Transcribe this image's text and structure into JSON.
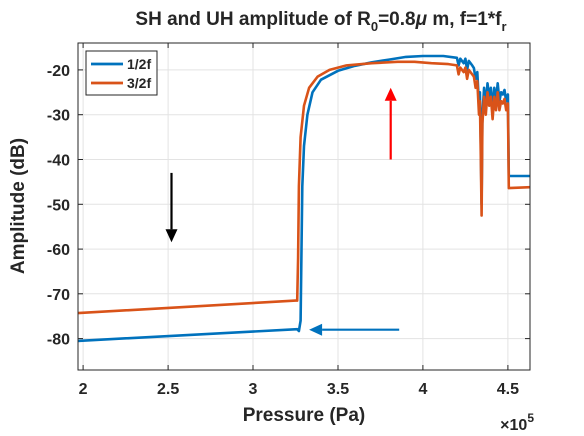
{
  "chart_data": {
    "type": "line",
    "title": {
      "prefix": "SH and UH amplitude of R",
      "sub1": "0",
      "middle": "=0.8",
      "mu": "μ",
      "suffix": " m, f=1*f",
      "sub2": "r"
    },
    "xlabel": "Pressure (Pa)",
    "ylabel": "Amplitude (dB)",
    "x_exponent": {
      "base": "×10",
      "power": "5"
    },
    "xlim": [
      1.97,
      4.63
    ],
    "ylim": [
      -87,
      -14
    ],
    "xticks": [
      2,
      2.5,
      3,
      3.5,
      4,
      4.5
    ],
    "xtick_labels": [
      "2",
      "2.5",
      "3",
      "3.5",
      "4",
      "4.5"
    ],
    "yticks": [
      -80,
      -70,
      -60,
      -50,
      -40,
      -30,
      -20
    ],
    "ytick_labels": [
      "-80",
      "-70",
      "-60",
      "-50",
      "-40",
      "-30",
      "-20"
    ],
    "grid": true,
    "legend": "top-left",
    "series": [
      {
        "name": "1/2f",
        "color": "#0072BD",
        "points": [
          [
            1.97,
            -80.5
          ],
          [
            3.26,
            -77.9
          ],
          [
            3.27,
            -78.3
          ],
          [
            3.28,
            -76
          ],
          [
            3.285,
            -60
          ],
          [
            3.29,
            -46
          ],
          [
            3.3,
            -37
          ],
          [
            3.32,
            -30
          ],
          [
            3.35,
            -25
          ],
          [
            3.4,
            -22.2
          ],
          [
            3.5,
            -20.2
          ],
          [
            3.6,
            -19.1
          ],
          [
            3.7,
            -18.3
          ],
          [
            3.8,
            -17.7
          ],
          [
            3.9,
            -17.1
          ],
          [
            4.0,
            -16.9
          ],
          [
            4.12,
            -16.9
          ],
          [
            4.2,
            -17.3
          ],
          [
            4.21,
            -19
          ],
          [
            4.22,
            -17.5
          ],
          [
            4.24,
            -18.5
          ],
          [
            4.25,
            -17.5
          ],
          [
            4.26,
            -20
          ],
          [
            4.27,
            -18
          ],
          [
            4.29,
            -19
          ],
          [
            4.3,
            -19.6
          ],
          [
            4.31,
            -22
          ],
          [
            4.32,
            -20.5
          ],
          [
            4.33,
            -28
          ],
          [
            4.335,
            -25
          ],
          [
            4.34,
            -35
          ],
          [
            4.345,
            -50
          ],
          [
            4.35,
            -30
          ],
          [
            4.36,
            -24
          ],
          [
            4.37,
            -28
          ],
          [
            4.38,
            -23
          ],
          [
            4.39,
            -26
          ],
          [
            4.4,
            -24
          ],
          [
            4.41,
            -29
          ],
          [
            4.42,
            -24
          ],
          [
            4.43,
            -27
          ],
          [
            4.44,
            -23
          ],
          [
            4.45,
            -27
          ],
          [
            4.46,
            -25
          ],
          [
            4.47,
            -25.5
          ],
          [
            4.48,
            -24.5
          ],
          [
            4.49,
            -27
          ],
          [
            4.5,
            -25.5
          ],
          [
            4.505,
            -43.7
          ],
          [
            4.63,
            -43.7
          ]
        ]
      },
      {
        "name": "3/2f",
        "color": "#D95319",
        "points": [
          [
            1.97,
            -74.3
          ],
          [
            3.25,
            -71.5
          ],
          [
            3.26,
            -71.5
          ],
          [
            3.265,
            -62
          ],
          [
            3.27,
            -46
          ],
          [
            3.28,
            -35
          ],
          [
            3.3,
            -28
          ],
          [
            3.33,
            -24
          ],
          [
            3.38,
            -21.5
          ],
          [
            3.45,
            -20
          ],
          [
            3.55,
            -19
          ],
          [
            3.7,
            -18.5
          ],
          [
            3.85,
            -18.2
          ],
          [
            3.95,
            -18.2
          ],
          [
            4.05,
            -18.5
          ],
          [
            4.15,
            -18.7
          ],
          [
            4.2,
            -19
          ],
          [
            4.21,
            -21
          ],
          [
            4.22,
            -19.5
          ],
          [
            4.24,
            -20.5
          ],
          [
            4.25,
            -19.5
          ],
          [
            4.26,
            -22
          ],
          [
            4.27,
            -20
          ],
          [
            4.29,
            -21
          ],
          [
            4.3,
            -21.5
          ],
          [
            4.31,
            -24
          ],
          [
            4.32,
            -22.5
          ],
          [
            4.33,
            -30
          ],
          [
            4.335,
            -27
          ],
          [
            4.34,
            -38
          ],
          [
            4.345,
            -52.5
          ],
          [
            4.35,
            -32
          ],
          [
            4.36,
            -26
          ],
          [
            4.37,
            -30
          ],
          [
            4.38,
            -25
          ],
          [
            4.39,
            -28
          ],
          [
            4.4,
            -26
          ],
          [
            4.41,
            -31
          ],
          [
            4.42,
            -26
          ],
          [
            4.43,
            -29
          ],
          [
            4.44,
            -25
          ],
          [
            4.45,
            -29
          ],
          [
            4.46,
            -27
          ],
          [
            4.47,
            -27.5
          ],
          [
            4.48,
            -26.5
          ],
          [
            4.49,
            -29
          ],
          [
            4.5,
            -27.5
          ],
          [
            4.505,
            -46.4
          ],
          [
            4.63,
            -46.2
          ]
        ]
      }
    ],
    "annotations": [
      {
        "type": "arrow",
        "color": "#000000",
        "from": [
          2.52,
          -43
        ],
        "to": [
          2.52,
          -58.5
        ]
      },
      {
        "type": "arrow",
        "color": "#FF0000",
        "from": [
          3.81,
          -40
        ],
        "to": [
          3.81,
          -24
        ]
      },
      {
        "type": "arrow",
        "color": "#0072BD",
        "from": [
          3.86,
          -78
        ],
        "to": [
          3.33,
          -78
        ]
      }
    ]
  }
}
